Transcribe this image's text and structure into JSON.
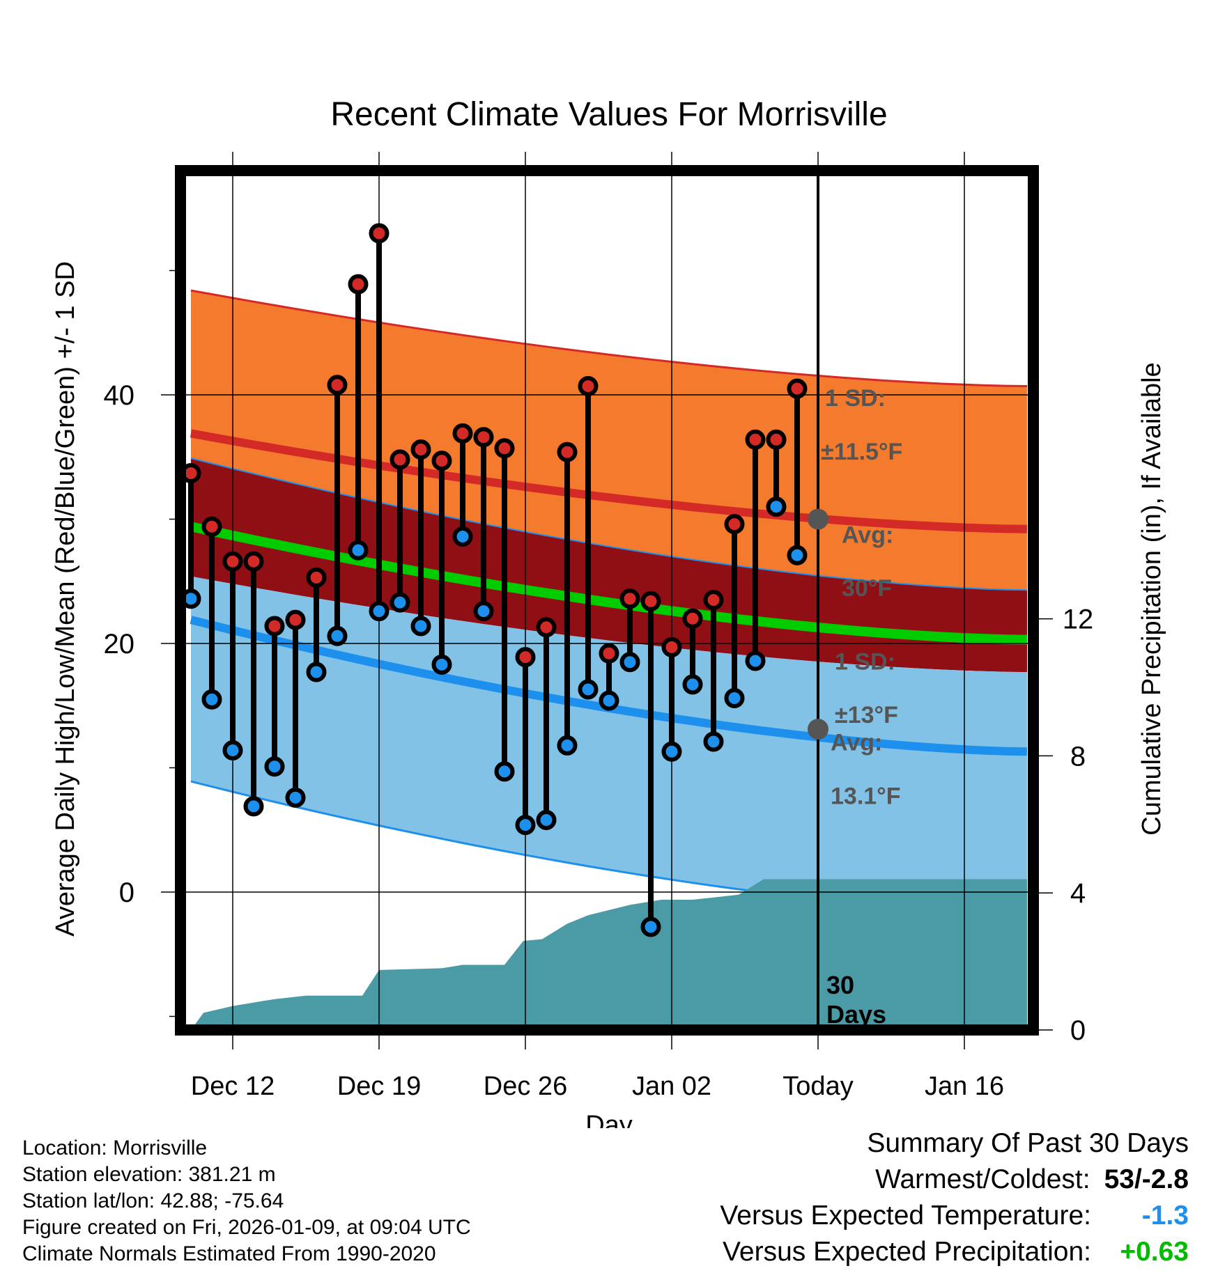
{
  "title": "Recent Climate Values For Morrisville",
  "chart_data": {
    "type": "line",
    "title": "Recent Climate Values For Morrisville",
    "xlabel": "Day",
    "ylabel": "Average Daily High/Low/Mean (Red/Blue/Green) +/- 1 SD",
    "y2label": "Cumulative Precipitation (in), If Available",
    "ylim": [
      -10.5,
      58
    ],
    "y2lim": [
      0,
      27.5
    ],
    "xlim": [
      0.5,
      41.5
    ],
    "x_ticks": [
      {
        "day": 3,
        "label": "Dec 12"
      },
      {
        "day": 10,
        "label": "Dec 19"
      },
      {
        "day": 17,
        "label": "Dec 26"
      },
      {
        "day": 24,
        "label": "Jan 02"
      },
      {
        "day": 31,
        "label": "Today"
      },
      {
        "day": 38,
        "label": "Jan 16"
      }
    ],
    "y_ticks": [
      0,
      20,
      40
    ],
    "y2_ticks": [
      0,
      4,
      8,
      12
    ],
    "today_day": 31,
    "today_label": "30\nDays",
    "normal_high": {
      "start": 36.9,
      "end": 29.2,
      "sd": 11.5,
      "avg_label": "Avg:",
      "avg_value": "30°F",
      "sd_label": "1 SD:",
      "sd_value": "±11.5°F",
      "marker_value": 30.0
    },
    "normal_low": {
      "start": 21.9,
      "end": 11.3,
      "sd": 13,
      "avg_label": "Avg:",
      "avg_value": "13.1°F",
      "sd_label": "1 SD:",
      "sd_value": "±13°F",
      "marker_value": 13.1
    },
    "normal_mean": {
      "start": 29.4,
      "end": 20.3
    },
    "colors": {
      "high_band": "#f47b2d",
      "high_line": "#d42a27",
      "overlap_band": "#900f14",
      "low_band": "#83c2e7",
      "low_line": "#1d8fec",
      "mean_line": "#00cc00",
      "precip_fill": "#4a9ba5",
      "high_dot": "#d42a27",
      "low_dot": "#1d8fec",
      "label_gray": "#555555"
    },
    "highs": [
      33.7,
      29.4,
      26.6,
      26.6,
      21.4,
      21.9,
      25.3,
      40.8,
      48.9,
      53.0,
      34.8,
      35.6,
      34.7,
      36.9,
      36.6,
      35.7,
      18.9,
      21.3,
      35.4,
      40.7,
      19.2,
      23.6,
      23.4,
      19.7,
      22.0,
      23.5,
      29.6,
      36.4,
      36.4,
      40.5
    ],
    "lows": [
      23.6,
      15.5,
      11.4,
      6.9,
      10.1,
      7.6,
      17.7,
      20.6,
      27.5,
      22.6,
      23.3,
      21.4,
      18.3,
      28.6,
      22.6,
      9.7,
      5.4,
      5.8,
      11.8,
      16.3,
      15.4,
      18.5,
      -2.8,
      11.3,
      16.7,
      12.1,
      15.6,
      18.6,
      31.0,
      27.1
    ],
    "precip_cumulative": [
      {
        "day": 1,
        "value": 0.0
      },
      {
        "day": 1.6,
        "value": 0.5
      },
      {
        "day": 3,
        "value": 0.7
      },
      {
        "day": 5,
        "value": 0.9
      },
      {
        "day": 6.5,
        "value": 1.0
      },
      {
        "day": 9.2,
        "value": 1.0
      },
      {
        "day": 10,
        "value": 1.75
      },
      {
        "day": 13,
        "value": 1.8
      },
      {
        "day": 14,
        "value": 1.9
      },
      {
        "day": 16,
        "value": 1.9
      },
      {
        "day": 16.9,
        "value": 2.6
      },
      {
        "day": 17.8,
        "value": 2.65
      },
      {
        "day": 19,
        "value": 3.1
      },
      {
        "day": 20,
        "value": 3.35
      },
      {
        "day": 22,
        "value": 3.65
      },
      {
        "day": 23.5,
        "value": 3.8
      },
      {
        "day": 25,
        "value": 3.8
      },
      {
        "day": 27.2,
        "value": 3.95
      },
      {
        "day": 28.4,
        "value": 4.4
      },
      {
        "day": 31,
        "value": 4.4
      },
      {
        "day": 41,
        "value": 4.4
      }
    ]
  },
  "footer": {
    "location": "Location: Morrisville",
    "elevation": "Station elevation: 381.21 m",
    "latlon": "Station lat/lon: 42.88; -75.64",
    "created": "Figure created on Fri, 2026-01-09, at 09:04 UTC",
    "normals": "Climate Normals Estimated From 1990-2020"
  },
  "summary": {
    "title": "Summary Of Past 30 Days",
    "warmest_label": "Warmest/Coldest:",
    "warmest_value": "53/-2.8",
    "temp_label": "Versus Expected Temperature:",
    "temp_value": "-1.3",
    "temp_color": "#1d8fec",
    "precip_label": "Versus Expected Precipitation:",
    "precip_value": "+0.63",
    "precip_color": "#00bb00"
  }
}
